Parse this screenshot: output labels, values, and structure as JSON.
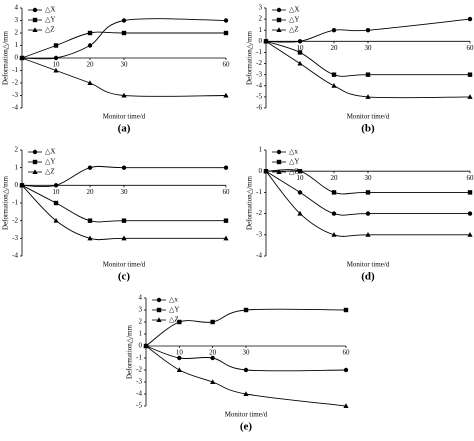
{
  "chart_data": [
    {
      "type": "line",
      "caption": "(a)",
      "x_label": "Monitor time/d",
      "y_label": "Deformation△/mm",
      "x": [
        0,
        10,
        20,
        30,
        60
      ],
      "xlim": [
        0,
        60
      ],
      "xticks": [
        10,
        20,
        30,
        60
      ],
      "ylim": [
        -4,
        4
      ],
      "yticks": [
        -4,
        -3,
        -2,
        -1,
        0,
        1,
        2,
        3,
        4
      ],
      "series": [
        {
          "name": "△X",
          "color": "#000000",
          "marker": "circle",
          "values": [
            0,
            0,
            1,
            3,
            3
          ]
        },
        {
          "name": "△Y",
          "color": "#000000",
          "marker": "square",
          "values": [
            0,
            1,
            2,
            2,
            2
          ]
        },
        {
          "name": "△Z",
          "color": "#000000",
          "marker": "triangle",
          "values": [
            0,
            -1,
            -2,
            -3,
            -3
          ]
        }
      ]
    },
    {
      "type": "line",
      "caption": "(b)",
      "x_label": "Monitor time/d",
      "y_label": "Deformation△/mm",
      "x": [
        0,
        10,
        20,
        30,
        60
      ],
      "xlim": [
        0,
        60
      ],
      "xticks": [
        10,
        20,
        30,
        60
      ],
      "ylim": [
        -6,
        3
      ],
      "yticks": [
        -6,
        -5,
        -4,
        -3,
        -2,
        -1,
        0,
        1,
        2,
        3
      ],
      "series": [
        {
          "name": "△X",
          "color": "#000000",
          "marker": "circle",
          "values": [
            0,
            0,
            1,
            1,
            2
          ]
        },
        {
          "name": "△Y",
          "color": "#000000",
          "marker": "square",
          "values": [
            0,
            -1,
            -3,
            -3,
            -3
          ]
        },
        {
          "name": "△Z",
          "color": "#000000",
          "marker": "triangle",
          "values": [
            0,
            -2,
            -4,
            -5,
            -5
          ]
        }
      ]
    },
    {
      "type": "line",
      "caption": "(c)",
      "x_label": "Monitor time/d",
      "y_label": "Deformation△/mm",
      "x": [
        0,
        10,
        20,
        30,
        60
      ],
      "xlim": [
        0,
        60
      ],
      "xticks": [
        10,
        20,
        30,
        60
      ],
      "ylim": [
        -4,
        2
      ],
      "yticks": [
        -4,
        -3,
        -2,
        -1,
        0,
        1,
        2
      ],
      "series": [
        {
          "name": "△X",
          "color": "#000000",
          "marker": "circle",
          "values": [
            0,
            0,
            1,
            1,
            1
          ]
        },
        {
          "name": "△Y",
          "color": "#000000",
          "marker": "square",
          "values": [
            0,
            -1,
            -2,
            -2,
            -2
          ]
        },
        {
          "name": "△Z",
          "color": "#000000",
          "marker": "triangle",
          "values": [
            0,
            -2,
            -3,
            -3,
            -3
          ]
        }
      ]
    },
    {
      "type": "line",
      "caption": "(d)",
      "x_label": "Monitor time/d",
      "y_label": "Deformation△/mm",
      "x": [
        0,
        10,
        20,
        30,
        60
      ],
      "xlim": [
        0,
        60
      ],
      "xticks": [
        10,
        20,
        30,
        60
      ],
      "ylim": [
        -4,
        1
      ],
      "yticks": [
        -4,
        -3,
        -2,
        -1,
        0,
        1
      ],
      "series": [
        {
          "name": "△x",
          "color": "#000000",
          "marker": "circle",
          "values": [
            0,
            -1,
            -2,
            -2,
            -2
          ]
        },
        {
          "name": "△Y",
          "color": "#000000",
          "marker": "square",
          "values": [
            0,
            0,
            -1,
            -1,
            -1
          ]
        },
        {
          "name": "△Z",
          "color": "#000000",
          "marker": "triangle",
          "values": [
            0,
            -2,
            -3,
            -3,
            -3
          ]
        }
      ]
    },
    {
      "type": "line",
      "caption": "(e)",
      "x_label": "Monitor time/d",
      "y_label": "Deformation△/mm",
      "x": [
        0,
        10,
        20,
        30,
        60
      ],
      "xlim": [
        0,
        60
      ],
      "xticks": [
        10,
        20,
        30,
        60
      ],
      "ylim": [
        -5,
        4
      ],
      "yticks": [
        -5,
        -4,
        -3,
        -2,
        -1,
        0,
        1,
        2,
        3,
        4
      ],
      "series": [
        {
          "name": "△x",
          "color": "#000000",
          "marker": "circle",
          "values": [
            0,
            -1,
            -1,
            -2,
            -2
          ]
        },
        {
          "name": "△Y",
          "color": "#000000",
          "marker": "square",
          "values": [
            0,
            2,
            2,
            3,
            3
          ]
        },
        {
          "name": "△Z",
          "color": "#000000",
          "marker": "triangle",
          "values": [
            0,
            -2,
            -3,
            -4,
            -5
          ]
        }
      ]
    }
  ]
}
